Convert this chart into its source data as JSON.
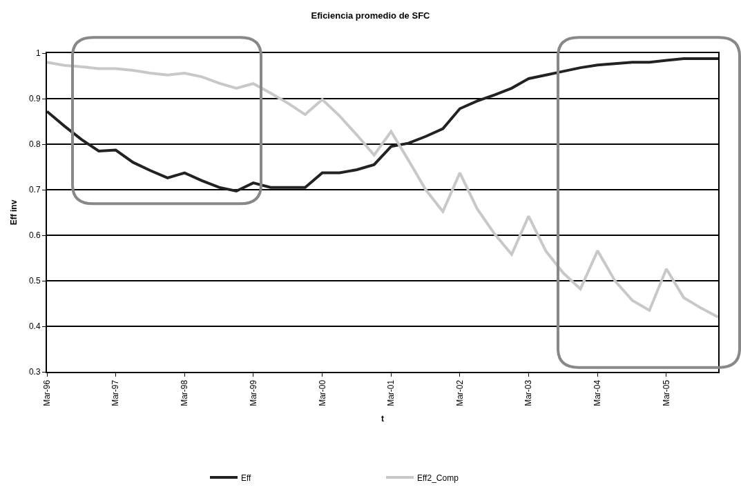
{
  "chart_data": {
    "type": "line",
    "title": "Eficiencia promedio de SFC",
    "xlabel": "t",
    "ylabel": "Eff inv",
    "x": [
      "1996-03",
      "1996-06",
      "1996-09",
      "1996-12",
      "1997-03",
      "1997-06",
      "1997-09",
      "1997-12",
      "1998-03",
      "1998-06",
      "1998-09",
      "1998-12",
      "1999-03",
      "1999-06",
      "1999-09",
      "1999-12",
      "2000-03",
      "2000-06",
      "2000-09",
      "2000-12",
      "2001-03",
      "2001-06",
      "2001-09",
      "2001-12",
      "2002-03",
      "2002-06",
      "2002-09",
      "2002-12",
      "2003-03",
      "2003-06",
      "2003-09",
      "2003-12",
      "2004-03",
      "2004-06",
      "2004-09",
      "2004-12",
      "2005-03",
      "2005-06",
      "2005-09",
      "2005-12"
    ],
    "series": [
      {
        "name": "Eff",
        "color": "#222222",
        "values": [
          0.872,
          0.84,
          0.81,
          0.785,
          0.787,
          0.76,
          0.742,
          0.726,
          0.737,
          0.72,
          0.705,
          0.697,
          0.715,
          0.705,
          0.705,
          0.705,
          0.737,
          0.737,
          0.744,
          0.755,
          0.795,
          0.802,
          0.817,
          0.834,
          0.878,
          0.895,
          0.908,
          0.923,
          0.944,
          0.952,
          0.96,
          0.968,
          0.974,
          0.977,
          0.98,
          0.98,
          0.984,
          0.988,
          0.988,
          0.988
        ]
      },
      {
        "name": "Eff2_Comp",
        "color": "#c8c8c8",
        "values": [
          0.98,
          0.973,
          0.97,
          0.966,
          0.966,
          0.962,
          0.956,
          0.952,
          0.956,
          0.948,
          0.934,
          0.923,
          0.933,
          0.912,
          0.89,
          0.865,
          0.898,
          0.862,
          0.82,
          0.776,
          0.828,
          0.765,
          0.7,
          0.652,
          0.737,
          0.658,
          0.603,
          0.558,
          0.642,
          0.565,
          0.517,
          0.482,
          0.566,
          0.5,
          0.457,
          0.435,
          0.526,
          0.463,
          0.44,
          0.42
        ]
      }
    ],
    "xlim": [
      "1996-03",
      "2005-12"
    ],
    "xticks": [
      {
        "value": "1996-03",
        "label": "Mar-96"
      },
      {
        "value": "1997-03",
        "label": "Mar-97"
      },
      {
        "value": "1998-03",
        "label": "Mar-98"
      },
      {
        "value": "1999-03",
        "label": "Mar-99"
      },
      {
        "value": "2000-03",
        "label": "Mar-00"
      },
      {
        "value": "2001-03",
        "label": "Mar-01"
      },
      {
        "value": "2002-03",
        "label": "Mar-02"
      },
      {
        "value": "2003-03",
        "label": "Mar-03"
      },
      {
        "value": "2004-03",
        "label": "Mar-04"
      },
      {
        "value": "2005-03",
        "label": "Mar-05"
      }
    ],
    "ylim": [
      0.3,
      1
    ],
    "yticks": [
      0.3,
      0.4,
      0.5,
      0.6,
      0.7,
      0.8,
      0.9,
      {
        "value": 1,
        "label": "1"
      }
    ],
    "grid": "y",
    "legend": "bottom",
    "marker": "none",
    "line_style": "solid"
  }
}
